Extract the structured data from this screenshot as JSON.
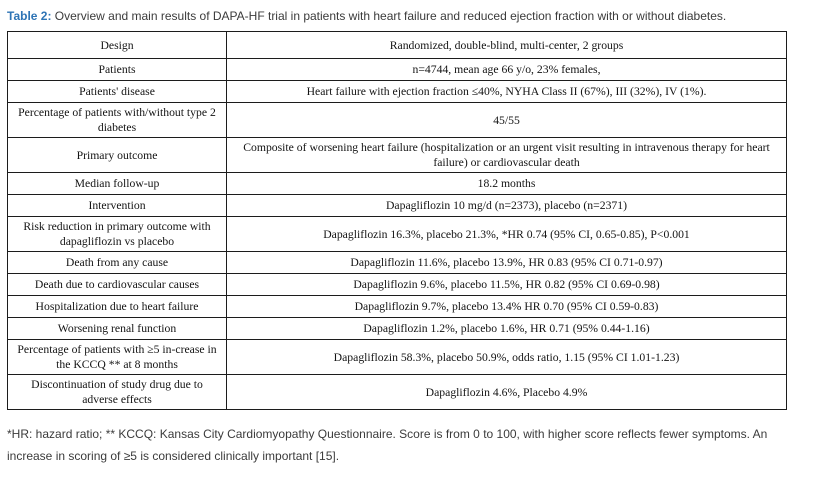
{
  "caption": {
    "label": "Table 2:",
    "text": " Overview and main results of DAPA-HF trial in patients with heart failure and reduced ejection fraction with or without diabetes."
  },
  "table": {
    "rows": [
      {
        "label": "Design",
        "value": "Randomized, double-blind, multi-center, 2 groups"
      },
      {
        "label": "Patients",
        "value": "n=4744, mean age 66 y/o, 23% females,"
      },
      {
        "label": "Patients' disease",
        "value": "Heart failure with ejection fraction ≤40%, NYHA Class II (67%), III (32%), IV (1%)."
      },
      {
        "label": "Percentage of patients with/without type 2 diabetes",
        "value": "45/55"
      },
      {
        "label": "Primary outcome",
        "value": "Composite of worsening heart failure (hospitalization or an urgent visit resulting in intravenous therapy for heart failure) or cardiovascular death"
      },
      {
        "label": "Median follow-up",
        "value": "18.2 months"
      },
      {
        "label": "Intervention",
        "value": "Dapagliflozin 10 mg/d (n=2373), placebo (n=2371)"
      },
      {
        "label": "Risk reduction in primary outcome with dapagliflozin vs placebo",
        "value": "Dapagliflozin 16.3%, placebo 21.3%, *HR 0.74 (95% CI, 0.65-0.85), P<0.001"
      },
      {
        "label": "Death from any cause",
        "value": "Dapagliflozin 11.6%, placebo 13.9%, HR 0.83 (95% CI 0.71-0.97)"
      },
      {
        "label": "Death due to cardiovascular causes",
        "value": "Dapagliflozin 9.6%, placebo 11.5%, HR 0.82 (95% CI 0.69-0.98)"
      },
      {
        "label": "Hospitalization due to heart failure",
        "value": "Dapagliflozin 9.7%, placebo 13.4% HR 0.70 (95% CI 0.59-0.83)"
      },
      {
        "label": "Worsening renal function",
        "value": "Dapagliflozin 1.2%, placebo 1.6%, HR 0.71 (95% 0.44-1.16)"
      },
      {
        "label": "Percentage of patients with ≥5 in-crease in the KCCQ ** at 8 months",
        "value": "Dapagliflozin 58.3%, placebo 50.9%, odds ratio, 1.15 (95% CI 1.01-1.23)"
      },
      {
        "label": "Discontinuation of study drug due to adverse effects",
        "value": "Dapagliflozin 4.6%, Placebo 4.9%"
      }
    ]
  },
  "footnote": {
    "line1": "*HR: hazard ratio; ** KCCQ: Kansas City Cardiomyopathy Questionnaire. Score is from 0 to 100, with higher score reflects fewer symptoms. An",
    "line2": "increase in scoring of ≥5 is considered clinically important [15]."
  },
  "colors": {
    "caption_accent": "#2e74b5",
    "table_border": "#1c1c1c",
    "table_text": "#141414",
    "meta_text": "#3b3b3b"
  }
}
